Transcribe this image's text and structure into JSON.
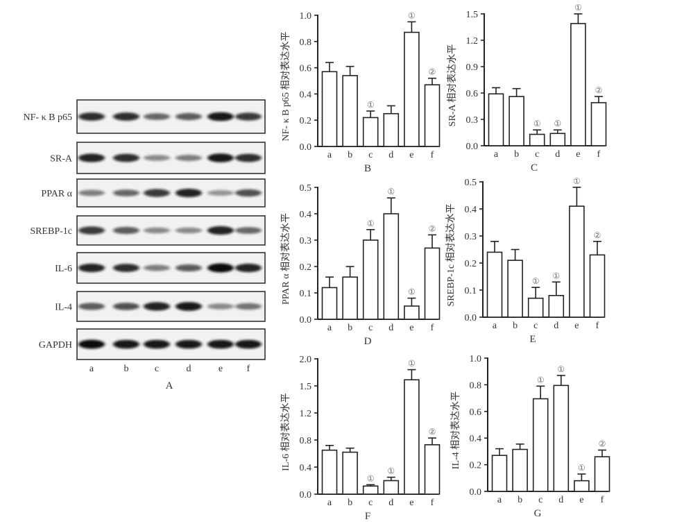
{
  "blot": {
    "panel_label": "A",
    "lanes": [
      "a",
      "b",
      "c",
      "d",
      "e",
      "f"
    ],
    "rows": [
      {
        "label": "NF- κ B p65",
        "intensity": [
          0.85,
          0.85,
          0.6,
          0.65,
          0.95,
          0.8
        ]
      },
      {
        "label": "SR-A",
        "intensity": [
          0.9,
          0.85,
          0.45,
          0.5,
          0.95,
          0.85
        ]
      },
      {
        "label": "PPAR α",
        "intensity": [
          0.5,
          0.6,
          0.8,
          0.9,
          0.4,
          0.7
        ]
      },
      {
        "label": "SREBP-1c",
        "intensity": [
          0.8,
          0.65,
          0.45,
          0.45,
          0.9,
          0.6
        ]
      },
      {
        "label": "IL-6",
        "intensity": [
          0.9,
          0.85,
          0.5,
          0.65,
          1.0,
          0.9
        ]
      },
      {
        "label": "IL-4",
        "intensity": [
          0.65,
          0.7,
          0.9,
          0.95,
          0.45,
          0.55
        ]
      },
      {
        "label": "GAPDH",
        "intensity": [
          1.0,
          0.95,
          0.95,
          0.95,
          0.95,
          0.95
        ]
      }
    ]
  },
  "chart_data": [
    {
      "type": "bar",
      "panel": "B",
      "ylabel": "NF- κ B p65 相对表达水平",
      "ylim": [
        0,
        1.0
      ],
      "yticks": [
        "0.0",
        "0.2",
        "0.4",
        "0.6",
        "0.8",
        "1.0"
      ],
      "categories": [
        "a",
        "b",
        "c",
        "d",
        "e",
        "f"
      ],
      "values": [
        0.57,
        0.54,
        0.22,
        0.25,
        0.87,
        0.47
      ],
      "errors_upper": [
        0.64,
        0.61,
        0.27,
        0.31,
        0.95,
        0.52
      ],
      "annotations": [
        "",
        "",
        "①",
        "",
        "①",
        "②"
      ]
    },
    {
      "type": "bar",
      "panel": "C",
      "ylabel": "SR-A 相对表达水平",
      "ylim": [
        0,
        1.5
      ],
      "yticks": [
        "0.0",
        "0.3",
        "0.6",
        "0.9",
        "1.2",
        "1.5"
      ],
      "categories": [
        "a",
        "b",
        "c",
        "d",
        "e",
        "f"
      ],
      "values": [
        0.59,
        0.56,
        0.13,
        0.14,
        1.39,
        0.49
      ],
      "errors_upper": [
        0.66,
        0.65,
        0.18,
        0.18,
        1.5,
        0.56
      ],
      "annotations": [
        "",
        "",
        "①",
        "①",
        "①",
        "②"
      ]
    },
    {
      "type": "bar",
      "panel": "D",
      "ylabel": "PPAR α 相对表达水平",
      "ylim": [
        0,
        0.5
      ],
      "yticks": [
        "0.0",
        "0.1",
        "0.2",
        "0.3",
        "0.4",
        "0.5"
      ],
      "categories": [
        "a",
        "b",
        "c",
        "d",
        "e",
        "f"
      ],
      "values": [
        0.12,
        0.16,
        0.3,
        0.4,
        0.05,
        0.27
      ],
      "errors_upper": [
        0.16,
        0.2,
        0.34,
        0.46,
        0.08,
        0.32
      ],
      "annotations": [
        "",
        "",
        "①",
        "①",
        "①",
        "②"
      ]
    },
    {
      "type": "bar",
      "panel": "E",
      "ylabel": "SREBP-1c 相对表达水平",
      "ylim": [
        0,
        0.5
      ],
      "yticks": [
        "0.0",
        "0.1",
        "0.2",
        "0.3",
        "0.4",
        "0.5"
      ],
      "categories": [
        "a",
        "b",
        "c",
        "d",
        "e",
        "f"
      ],
      "values": [
        0.24,
        0.21,
        0.07,
        0.08,
        0.41,
        0.23
      ],
      "errors_upper": [
        0.28,
        0.25,
        0.11,
        0.13,
        0.48,
        0.28
      ],
      "annotations": [
        "",
        "",
        "①",
        "①",
        "①",
        "②"
      ]
    },
    {
      "type": "bar",
      "panel": "F",
      "ylabel": "IL-6 相对表达水平",
      "ylim": [
        0,
        2.0
      ],
      "yticks": [
        "0.0",
        "0.4",
        "0.8",
        "1.2",
        "1.5",
        "2.0"
      ],
      "categories": [
        "a",
        "b",
        "c",
        "d",
        "e",
        "f"
      ],
      "values": [
        0.65,
        0.62,
        0.12,
        0.2,
        1.69,
        0.73
      ],
      "errors_upper": [
        0.72,
        0.68,
        0.14,
        0.25,
        1.84,
        0.83
      ],
      "annotations": [
        "",
        "",
        "①",
        "①",
        "①",
        "②"
      ]
    },
    {
      "type": "bar",
      "panel": "G",
      "ylabel": "IL-4 相对表达水平",
      "ylim": [
        0,
        1.0
      ],
      "yticks": [
        "0.0",
        "0.2",
        "0.4",
        "0.6",
        "0.8",
        "1.0"
      ],
      "categories": [
        "a",
        "b",
        "c",
        "d",
        "e",
        "f"
      ],
      "values": [
        0.27,
        0.315,
        0.695,
        0.795,
        0.08,
        0.26
      ],
      "errors_upper": [
        0.32,
        0.355,
        0.79,
        0.87,
        0.13,
        0.31
      ],
      "annotations": [
        "",
        "",
        "①",
        "①",
        "①",
        "②"
      ]
    }
  ],
  "colors": {
    "ink": "#222222",
    "bar_fill": "#ffffff",
    "annotation": "#666666"
  }
}
